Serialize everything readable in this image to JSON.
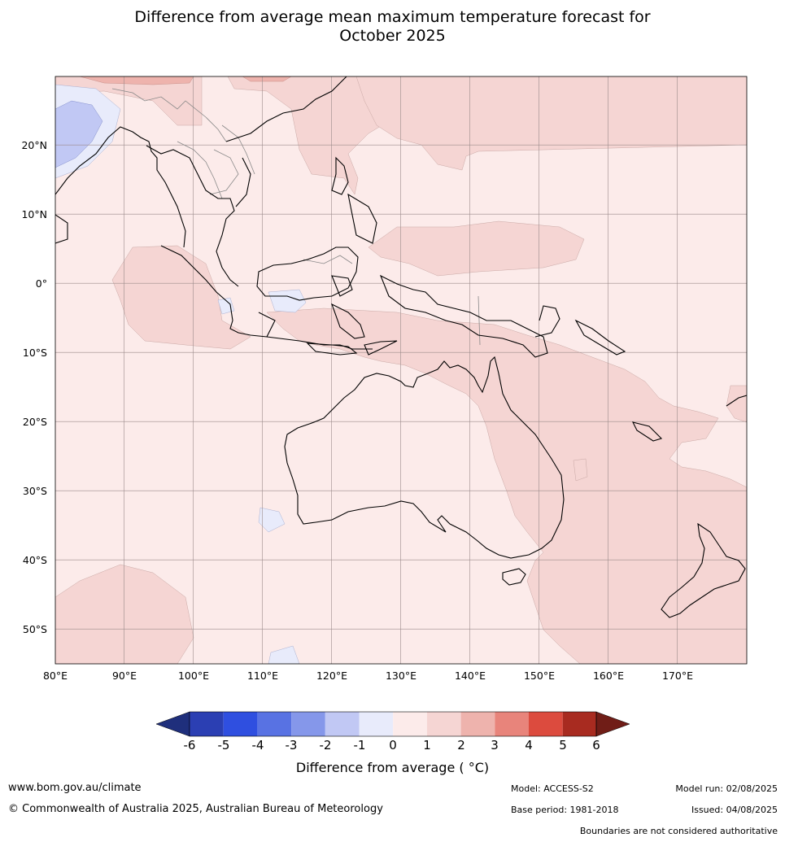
{
  "title_line1": "Difference from average mean maximum temperature forecast for",
  "title_line2": "October 2025",
  "map": {
    "lat_labels": [
      "20°N",
      "10°N",
      "0°",
      "10°S",
      "20°S",
      "30°S",
      "40°S",
      "50°S"
    ],
    "lon_labels": [
      "80°E",
      "90°E",
      "100°E",
      "110°E",
      "120°E",
      "130°E",
      "140°E",
      "150°E",
      "160°E",
      "170°E"
    ],
    "colors": {
      "ocean_base": "#fcebea",
      "plus_1_2": "#f5d5d3",
      "plus_2_3": "#eeb3ad",
      "minus_0_1": "#e8ebfb",
      "minus_1_2": "#c1c8f4",
      "coast": "#000000",
      "border": "#888888",
      "grid": "#9a8a8a"
    }
  },
  "legend": {
    "ticks": [
      "-6",
      "-5",
      "-4",
      "-3",
      "-2",
      "-1",
      "0",
      "1",
      "2",
      "3",
      "4",
      "5",
      "6"
    ],
    "colors": [
      "#1f2f7c",
      "#2b3fb3",
      "#2f4fe0",
      "#5872e3",
      "#8597ea",
      "#c1c8f4",
      "#e8ebfb",
      "#fcebea",
      "#f5d5d3",
      "#eeb3ad",
      "#e8847b",
      "#dc4b3e",
      "#a82b20",
      "#701d17"
    ],
    "label": "Difference from average ( °C)"
  },
  "footer": {
    "website": "www.bom.gov.au/climate",
    "copyright": "© Commonwealth of Australia 2025, Australian Bureau of Meteorology",
    "model": "Model: ACCESS-S2",
    "base_period": "Base period: 1981-2018",
    "model_run": "Model run: 02/08/2025",
    "issued": "Issued: 04/08/2025",
    "boundaries_note": "Boundaries are not considered authoritative"
  }
}
